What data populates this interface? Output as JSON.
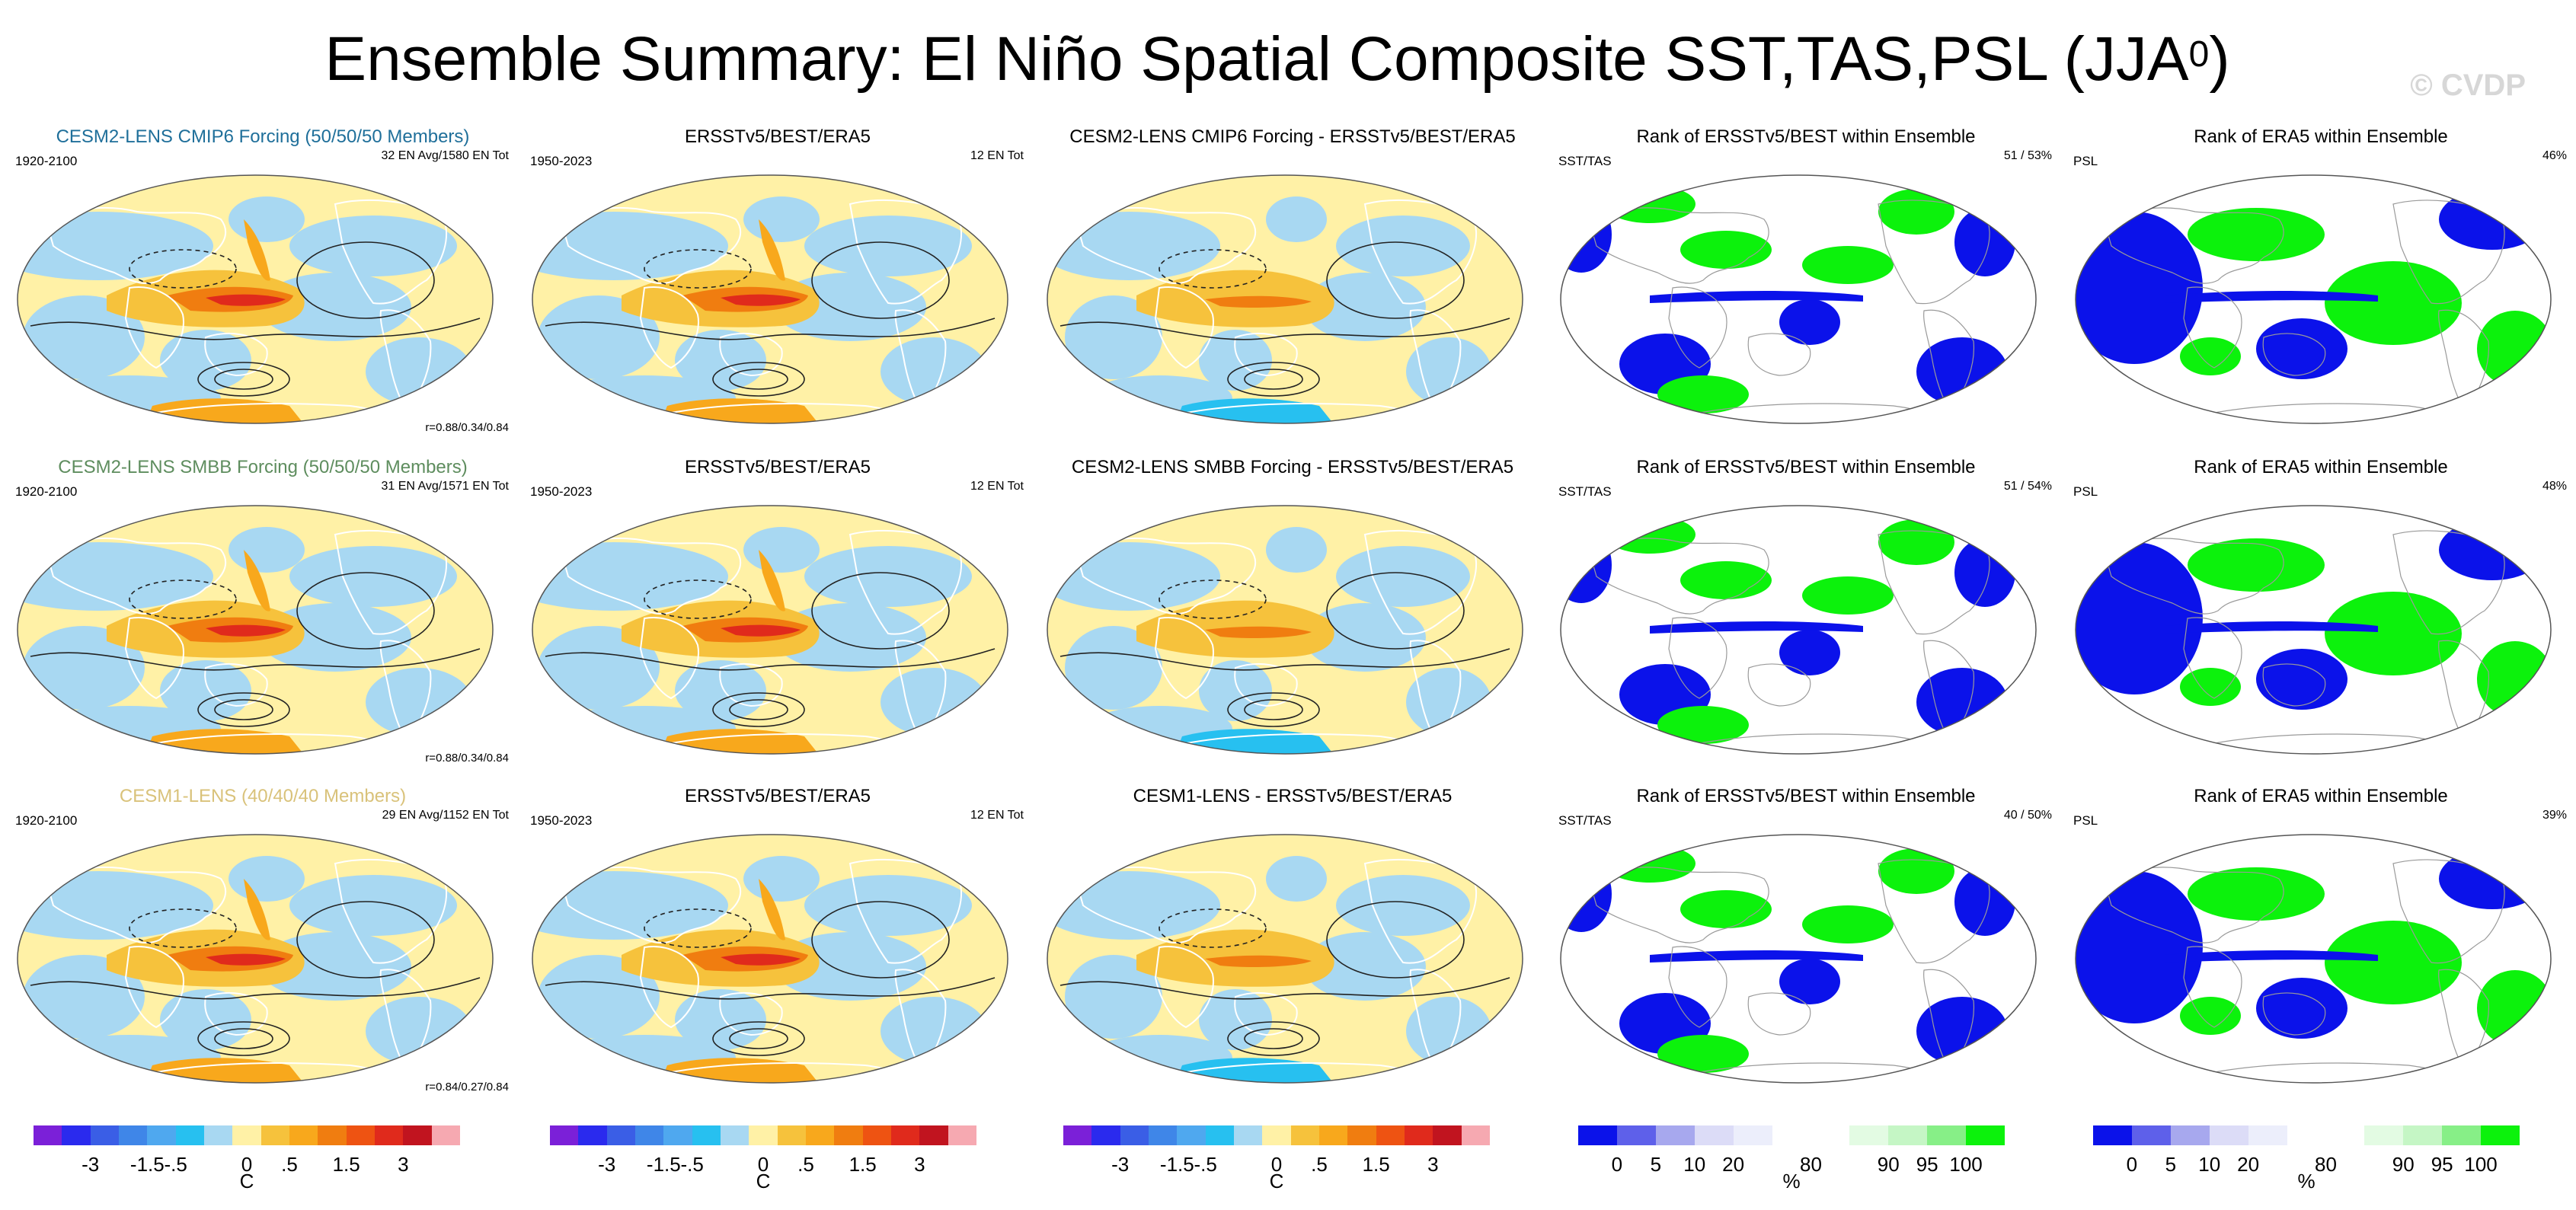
{
  "title": {
    "main": "Ensemble Summary: El Niño Spatial Composite SST,TAS,PSL (JJA",
    "superscript": "0",
    "close": ")"
  },
  "watermark": "© CVDP",
  "rows": [
    {
      "model": {
        "title": "CESM2-LENS CMIP6 Forcing (50/50/50 Members)",
        "title_color": "#1f6f9a",
        "period": "1920-2100",
        "count": "32 EN Avg/1580 EN Tot",
        "stats": "r=0.88/0.34/0.84"
      },
      "obs": {
        "title": "ERSSTv5/BEST/ERA5",
        "period": "1950-2023",
        "count": "12 EN Tot"
      },
      "diff": {
        "title": "CESM2-LENS CMIP6 Forcing - ERSSTv5/BEST/ERA5"
      },
      "rank1": {
        "title": "Rank of ERSSTv5/BEST within Ensemble",
        "label": "SST/TAS",
        "value": "51 /  53%"
      },
      "rank2": {
        "title": "Rank of ERA5 within Ensemble",
        "label": "PSL",
        "value": "46%"
      }
    },
    {
      "model": {
        "title": "CESM2-LENS SMBB Forcing (50/50/50 Members)",
        "title_color": "#5e8d5e",
        "period": "1920-2100",
        "count": "31 EN Avg/1571 EN Tot",
        "stats": "r=0.88/0.34/0.84"
      },
      "obs": {
        "title": "ERSSTv5/BEST/ERA5",
        "period": "1950-2023",
        "count": "12 EN Tot"
      },
      "diff": {
        "title": "CESM2-LENS SMBB Forcing - ERSSTv5/BEST/ERA5"
      },
      "rank1": {
        "title": "Rank of ERSSTv5/BEST within Ensemble",
        "label": "SST/TAS",
        "value": "51 /  54%"
      },
      "rank2": {
        "title": "Rank of ERA5 within Ensemble",
        "label": "PSL",
        "value": "48%"
      }
    },
    {
      "model": {
        "title": "CESM1-LENS (40/40/40 Members)",
        "title_color": "#d9c27a",
        "period": "1920-2100",
        "count": "29 EN Avg/1152 EN Tot",
        "stats": "r=0.84/0.27/0.84"
      },
      "obs": {
        "title": "ERSSTv5/BEST/ERA5",
        "period": "1950-2023",
        "count": "12 EN Tot"
      },
      "diff": {
        "title": "CESM1-LENS - ERSSTv5/BEST/ERA5"
      },
      "rank1": {
        "title": "Rank of ERSSTv5/BEST within Ensemble",
        "label": "SST/TAS",
        "value": "40 /  50%"
      },
      "rank2": {
        "title": "Rank of ERA5 within Ensemble",
        "label": "PSL",
        "value": "39%"
      }
    }
  ],
  "colorbars": {
    "anomaly": {
      "unit": "C",
      "colors": [
        "#7b20d8",
        "#2a2aee",
        "#3a5ee6",
        "#3f86e8",
        "#4fa8ef",
        "#27c0f0",
        "#a8d8f2",
        "#fff1a6",
        "#f6c23c",
        "#f8a81c",
        "#f07d10",
        "#ee5312",
        "#e02a1c",
        "#c1141f",
        "#f6a9b1"
      ],
      "ticks": [
        "-3",
        "-1.5",
        "-.5",
        "0",
        ".5",
        "1.5",
        "3"
      ]
    },
    "rank": {
      "unit": "%",
      "colors": [
        "#0b12ea",
        "#5e60ea",
        "#a7a8ee",
        "#dcdcf7",
        "#eceefb",
        "#ffffff",
        "#ffffff",
        "#e3fbe3",
        "#c5f6c5",
        "#87ef87",
        "#0cf20c"
      ],
      "ticks": [
        "0",
        "5",
        "10",
        "20",
        "80",
        "90",
        "95",
        "100"
      ]
    }
  },
  "chart_data": [
    {
      "type": "heatmap",
      "panel": "composite",
      "row": 1,
      "title": "CESM2-LENS CMIP6 Forcing (50/50/50 Members)",
      "units": "C",
      "legend": [
        "-3",
        "-1.5",
        "-.5",
        "0",
        ".5",
        "1.5",
        "3"
      ]
    },
    {
      "type": "heatmap",
      "panel": "composite",
      "row": 1,
      "title": "ERSSTv5/BEST/ERA5",
      "units": "C"
    },
    {
      "type": "heatmap",
      "panel": "difference",
      "row": 1,
      "title": "CESM2-LENS CMIP6 Forcing - ERSSTv5/BEST/ERA5",
      "units": "C"
    },
    {
      "type": "heatmap",
      "panel": "rank",
      "row": 1,
      "title": "Rank of ERSSTv5/BEST within Ensemble",
      "units": "%"
    },
    {
      "type": "heatmap",
      "panel": "rank",
      "row": 1,
      "title": "Rank of ERA5 within Ensemble",
      "units": "%"
    }
  ]
}
